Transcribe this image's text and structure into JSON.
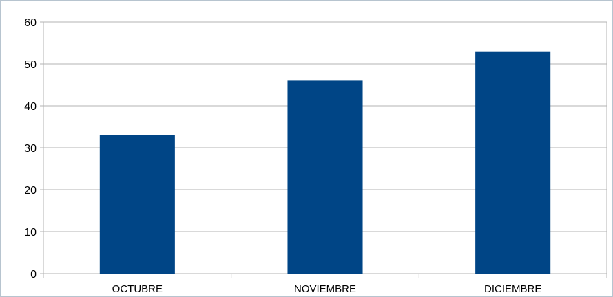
{
  "chart_data": {
    "type": "bar",
    "categories": [
      "OCTUBRE",
      "NOVIEMBRE",
      "DICIEMBRE"
    ],
    "values": [
      33,
      46,
      53
    ],
    "title": "",
    "xlabel": "",
    "ylabel": "",
    "ylim": [
      0,
      60
    ],
    "yticks": [
      "0",
      "10",
      "20",
      "30",
      "40",
      "50",
      "60"
    ],
    "grid": true,
    "legend": "none",
    "colors": {
      "bar": "#004586",
      "grid": "#b3b3b3",
      "axis": "#b3b3b3"
    }
  }
}
